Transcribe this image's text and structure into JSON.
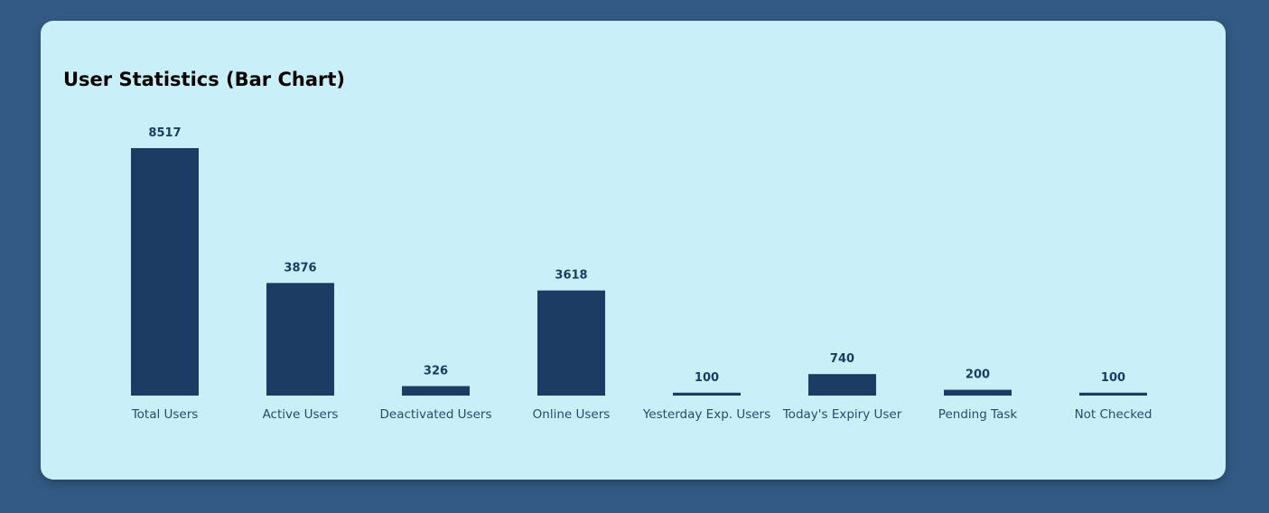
{
  "card": {
    "title": "User Statistics (Bar Chart)"
  },
  "colors": {
    "page_background": "#335a85",
    "card_background": "#c9f0f8",
    "bar": "#1d3c63",
    "label": "#1d3c63",
    "category_text": "#2a4a6e"
  },
  "chart_data": {
    "type": "bar",
    "title": "User Statistics (Bar Chart)",
    "categories": [
      "Total Users",
      "Active Users",
      "Deactivated Users",
      "Online Users",
      "Yesterday Exp. Users",
      "Today's Expiry User",
      "Pending Task",
      "Not Checked"
    ],
    "values": [
      8517,
      3876,
      326,
      3618,
      100,
      740,
      200,
      100
    ],
    "xlabel": "",
    "ylabel": "",
    "ylim": [
      0,
      8517
    ],
    "grid": false,
    "legend": "none",
    "data_labels": true
  }
}
